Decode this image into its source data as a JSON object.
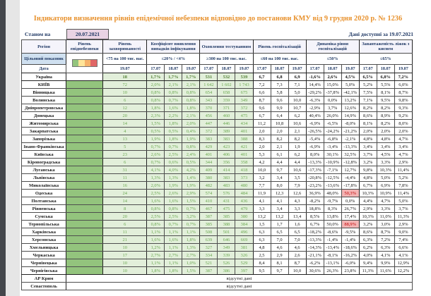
{
  "page": {
    "title": "Індикатори визначення рівнів епідемічної небезпеки відповідно до постанови КМУ від 9 грудня 2020 р. № 1236",
    "as_of_label": "Станом на",
    "as_of_date": "20.07.2021",
    "data_available_text": "Дані доступні за  19.07.2021"
  },
  "table": {
    "region_header": "Регіон",
    "target_label": "Цільовий показник",
    "date_label": "Дата",
    "groups": [
      {
        "label": "Рівень епіднебезпеки",
        "target": "",
        "dates": []
      },
      {
        "label": "Рівень захворюваності",
        "target": "<75 на 100 тис. нас.",
        "dates": [
          "19.07"
        ]
      },
      {
        "label": "Коефіцієнт виявлення випадків інфікування",
        "target": "≤20% / <4%",
        "dates": [
          "17.07",
          "18.07",
          "19.07"
        ]
      },
      {
        "label": "Охоплення тестуванням",
        "target": "≥300 на 100 тис. нас.",
        "dates": [
          "17.07",
          "18.07",
          "19.07"
        ]
      },
      {
        "label": "Рівень госпіталізацій",
        "target": "≤60 на 100 тис. нас.",
        "dates": [
          "17.07",
          "18.07",
          "19.07"
        ]
      },
      {
        "label": "Динаміка рівня госпіталізацій",
        "target": "≤50%",
        "dates": [
          "17.07",
          "18.07",
          "19.07"
        ]
      },
      {
        "label": "Завантаженість ліжок з киснем",
        "target": "≤65%",
        "dates": [
          "17.07",
          "18.07",
          "19.07"
        ]
      }
    ],
    "legend_colors": [
      "#93c47d",
      "#ffe599",
      "#f6b26b",
      "#e06666"
    ],
    "no_data_text": "відсутні дані",
    "rows": [
      {
        "region": "Україна",
        "bold": true,
        "epid_filled": false,
        "values": [
          "18",
          "1,7%",
          "1,7%",
          "1,7%",
          "531",
          "532",
          "539",
          "6,7",
          "6,8",
          "6,9",
          "-1,6%",
          "2,6%",
          "4,5%",
          "6,5%",
          "6,8%",
          "7,2%"
        ]
      },
      {
        "region": "КИЇВ",
        "epid_filled": true,
        "values": [
          "72",
          "2,0%",
          "2,1%",
          "2,1%",
          "1 642",
          "1 602",
          "1 743",
          "7,2",
          "7,3",
          "7,1",
          "14,4%",
          "15,0%",
          "5,0%",
          "5,2%",
          "5,5%",
          "6,0%"
        ]
      },
      {
        "region": "Вінницька",
        "epid_filled": true,
        "values": [
          "10",
          "0,8%",
          "0,8%",
          "0,8%",
          "654",
          "658",
          "675",
          "6,6",
          "5,8",
          "5,0",
          "-29,2%",
          "-37,8%",
          "-42,1%",
          "7,5%",
          "8,1%",
          "8,7%"
        ]
      },
      {
        "region": "Волинська",
        "epid_filled": true,
        "values": [
          "6",
          "0,8%",
          "0,7%",
          "0,8%",
          "343",
          "359",
          "349",
          "8,7",
          "9,6",
          "10,0",
          "-6,3%",
          "0,0%",
          "13,2%",
          "7,1%",
          "9,5%",
          "9,8%"
        ]
      },
      {
        "region": "Дніпропетровська",
        "epid_filled": true,
        "values": [
          "12",
          "1,8%",
          "1,6%",
          "1,8%",
          "370",
          "371",
          "372",
          "9,6",
          "9,9",
          "10,7",
          "-2,9%",
          "3,7%",
          "12,6%",
          "8,2%",
          "8,2%",
          "9,3%"
        ]
      },
      {
        "region": "Донецька",
        "epid_filled": true,
        "values": [
          "20",
          "2,3%",
          "2,2%",
          "2,1%",
          "456",
          "460",
          "475",
          "6,7",
          "6,4",
          "6,2",
          "40,4%",
          "26,0%",
          "14,9%",
          "8,6%",
          "8,9%",
          "9,2%"
        ]
      },
      {
        "region": "Житомирська",
        "epid_filled": true,
        "values": [
          "14",
          "1,5%",
          "1,8%",
          "2,0%",
          "447",
          "446",
          "434",
          "11,2",
          "10,8",
          "10,6",
          "-6,9%",
          "-6,5%",
          "-8,0%",
          "8,1%",
          "8,2%",
          "8,0%"
        ]
      },
      {
        "region": "Закарпатська",
        "epid_filled": true,
        "values": [
          "4",
          "0,5%",
          "0,5%",
          "0,4%",
          "372",
          "389",
          "401",
          "2,0",
          "2,0",
          "2,1",
          "-26,5%",
          "-24,2%",
          "-21,2%",
          "2,0%",
          "2,0%",
          "2,0%"
        ]
      },
      {
        "region": "Запорізька",
        "epid_filled": true,
        "values": [
          "13",
          "1,9%",
          "1,8%",
          "1,9%",
          "383",
          "383",
          "388",
          "8,3",
          "8,2",
          "8,2",
          "-5,4%",
          "-6,8%",
          "-2,1%",
          "4,8%",
          "4,8%",
          "4,7%"
        ]
      },
      {
        "region": "Івано-Франківська",
        "epid_filled": true,
        "values": [
          "5",
          "0,7%",
          "0,7%",
          "0,8%",
          "429",
          "423",
          "421",
          "2,0",
          "2,1",
          "1,9",
          "-6,9%",
          "-3,4%",
          "-13,3%",
          "3,4%",
          "3,4%",
          "3,4%"
        ]
      },
      {
        "region": "Київська",
        "epid_filled": true,
        "values": [
          "23",
          "2,6%",
          "2,5%",
          "2,4%",
          "401",
          "406",
          "401",
          "5,3",
          "6,1",
          "6,2",
          "8,0%",
          "30,1%",
          "32,5%",
          "3,7%",
          "4,5%",
          "4,7%"
        ]
      },
      {
        "region": "Кіровоградська",
        "epid_filled": true,
        "values": [
          "6",
          "0,7%",
          "0,6%",
          "0,5%",
          "344",
          "356",
          "358",
          "4,2",
          "4,4",
          "4,4",
          "-13,3%",
          "-10,9%",
          "-12,8%",
          "3,2%",
          "3,3%",
          "2,9%"
        ]
      },
      {
        "region": "Луганська",
        "epid_filled": true,
        "values": [
          "31",
          "4,1%",
          "4,0%",
          "4,2%",
          "409",
          "414",
          "418",
          "10,0",
          "9,7",
          "10,6",
          "-17,3%",
          "-7,1%",
          "12,7%",
          "9,8%",
          "10,3%",
          "11,4%"
        ]
      },
      {
        "region": "Львівська",
        "epid_filled": true,
        "values": [
          "11",
          "1,3%",
          "1,3%",
          "1,4%",
          "380",
          "383",
          "373",
          "3,2",
          "3,4",
          "3,5",
          "-20,8%",
          "-12,5%",
          "-4,4%",
          "4,8%",
          "5,0%",
          "5,2%"
        ]
      },
      {
        "region": "Миколаївська",
        "epid_filled": true,
        "values": [
          "16",
          "2,0%",
          "1,9%",
          "1,9%",
          "482",
          "483",
          "480",
          "7,7",
          "8,0",
          "7,9",
          "-23,2%",
          "-13,6%",
          "-17,8%",
          "6,7%",
          "6,9%",
          "7,8%"
        ]
      },
      {
        "region": "Одеська",
        "epid_filled": true,
        "highlight": [
          12
        ],
        "values": [
          "24",
          "2,5%",
          "2,6%",
          "2,9%",
          "574",
          "576",
          "484",
          "11,9",
          "12,3",
          "12,6",
          "36,9%",
          "48,0%",
          "50,3%",
          "10,3%",
          "10,9%",
          "11,4%"
        ]
      },
      {
        "region": "Полтавська",
        "epid_filled": true,
        "values": [
          "14",
          "1,6%",
          "1,6%",
          "1,5%",
          "410",
          "431",
          "436",
          "4,1",
          "4,1",
          "4,3",
          "-8,2%",
          "-9,7%",
          "0,0%",
          "4,4%",
          "4,7%",
          "5,0%"
        ]
      },
      {
        "region": "Рівненська",
        "epid_filled": true,
        "values": [
          "8",
          "0,8%",
          "0,8%",
          "0,7%",
          "467",
          "475",
          "479",
          "3,3",
          "3,4",
          "3,3",
          "18,8%",
          "8,3%",
          "26,7%",
          "2,9%",
          "3,3%",
          "3,7%"
        ]
      },
      {
        "region": "Сумська",
        "epid_filled": true,
        "values": [
          "20",
          "2,5%",
          "2,5%",
          "3,2%",
          "387",
          "385",
          "380",
          "13,2",
          "13,2",
          "13,4",
          "8,5%",
          "13,8%",
          "17,4%",
          "10,3%",
          "11,0%",
          "11,3%"
        ]
      },
      {
        "region": "Тернопільська",
        "epid_filled": true,
        "highlight": [
          12
        ],
        "values": [
          "6",
          "0,8%",
          "0,7%",
          "0,7%",
          "385",
          "388",
          "384",
          "1,5",
          "1,7",
          "1,6",
          "6,7%",
          "50,0%",
          "88,9%",
          "3,2%",
          "3,0%",
          "2,9%"
        ]
      },
      {
        "region": "Харківська",
        "epid_filled": true,
        "values": [
          "11",
          "1,1%",
          "1,1%",
          "1,1%",
          "508",
          "501",
          "496",
          "6,3",
          "6,5",
          "6,5",
          "-18,2%",
          "-8,6%",
          "-9,5%",
          "8,6%",
          "8,7%",
          "9,0%"
        ]
      },
      {
        "region": "Херсонська",
        "epid_filled": true,
        "values": [
          "21",
          "1,6%",
          "1,6%",
          "1,8%",
          "639",
          "646",
          "669",
          "6,3",
          "7,0",
          "7,0",
          "-13,3%",
          "-1,4%",
          "-1,4%",
          "6,3%",
          "7,2%",
          "7,4%"
        ]
      },
      {
        "region": "Хмельницька",
        "epid_filled": true,
        "values": [
          "10",
          "1,2%",
          "1,1%",
          "1,3%",
          "327",
          "349",
          "381",
          "4,8",
          "4,6",
          "4,6",
          "-14,3%",
          "-13,4%",
          "-18,6%",
          "6,2%",
          "6,3%",
          "6,6%"
        ]
      },
      {
        "region": "Черкаська",
        "epid_filled": true,
        "values": [
          "17",
          "2,7%",
          "2,7%",
          "2,7%",
          "334",
          "339",
          "326",
          "2,5",
          "2,9",
          "2,6",
          "-21,1%",
          "-8,1%",
          "-16,2%",
          "4,0%",
          "4,1%",
          "4,1%"
        ]
      },
      {
        "region": "Чернівецька",
        "epid_filled": true,
        "values": [
          "10",
          "1,1%",
          "1,1%",
          "1,0%",
          "521",
          "526",
          "529",
          "8,4",
          "8,1",
          "8,7",
          "-6,2%",
          "-13,1%",
          "-6,0%",
          "9,4%",
          "9,9%",
          "12,9%"
        ]
      },
      {
        "region": "Чернігівська",
        "epid_filled": true,
        "thick_bottom": true,
        "values": [
          "10",
          "1,8%",
          "1,8%",
          "1,5%",
          "387",
          "386",
          "397",
          "9,5",
          "9,7",
          "10,0",
          "30,6%",
          "26,3%",
          "23,8%",
          "11,3%",
          "11,6%",
          "12,2%"
        ]
      },
      {
        "region": "АР Крим",
        "no_data": true
      },
      {
        "region": "Севастополь",
        "no_data": true
      }
    ]
  }
}
